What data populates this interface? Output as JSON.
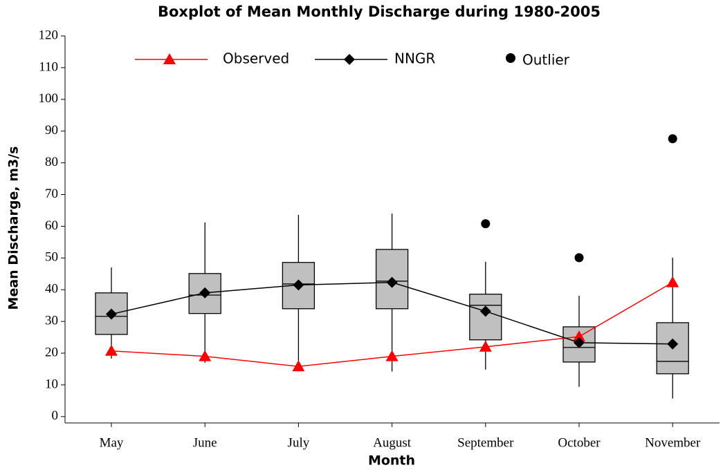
{
  "chart_data": {
    "type": "box",
    "title": "Boxplot of Mean Monthly Discharge during 1980-2005",
    "xlabel": "Month",
    "ylabel": "Mean Discharge, m3/s",
    "categories": [
      "May",
      "June",
      "July",
      "August",
      "September",
      "October",
      "November"
    ],
    "boxes": {
      "color": "#c0c0c0",
      "whislo": [
        18.3,
        17,
        15.8,
        14.2,
        14.8,
        9.4,
        5.7
      ],
      "q1": [
        25.9,
        32.5,
        34,
        34,
        24.2,
        17.2,
        13.5
      ],
      "med": [
        31.6,
        38.3,
        41.8,
        42.7,
        35.1,
        21.8,
        17.4
      ],
      "q3": [
        39,
        45.1,
        48.6,
        52.7,
        38.6,
        28.3,
        29.6
      ],
      "whishi": [
        47,
        61.2,
        63.6,
        64,
        48.8,
        38.1,
        50.1
      ]
    },
    "outliers": {
      "name": "Outlier",
      "color": "#000000",
      "values": [
        null,
        null,
        null,
        null,
        60.8,
        50.1,
        87.6
      ]
    },
    "series": [
      {
        "name": "Observed",
        "color": "#ff0000",
        "marker": "triangle",
        "values": [
          20.7,
          19,
          15.8,
          19,
          22,
          25.2,
          42.3
        ]
      },
      {
        "name": "NNGR",
        "color": "#000000",
        "marker": "diamond",
        "values": [
          32.3,
          39,
          41.5,
          42.3,
          33.2,
          23.3,
          22.9
        ]
      }
    ],
    "ylim": [
      -2,
      120
    ],
    "yticks": [
      0,
      10,
      20,
      30,
      40,
      50,
      60,
      70,
      80,
      90,
      100,
      110,
      120
    ]
  }
}
